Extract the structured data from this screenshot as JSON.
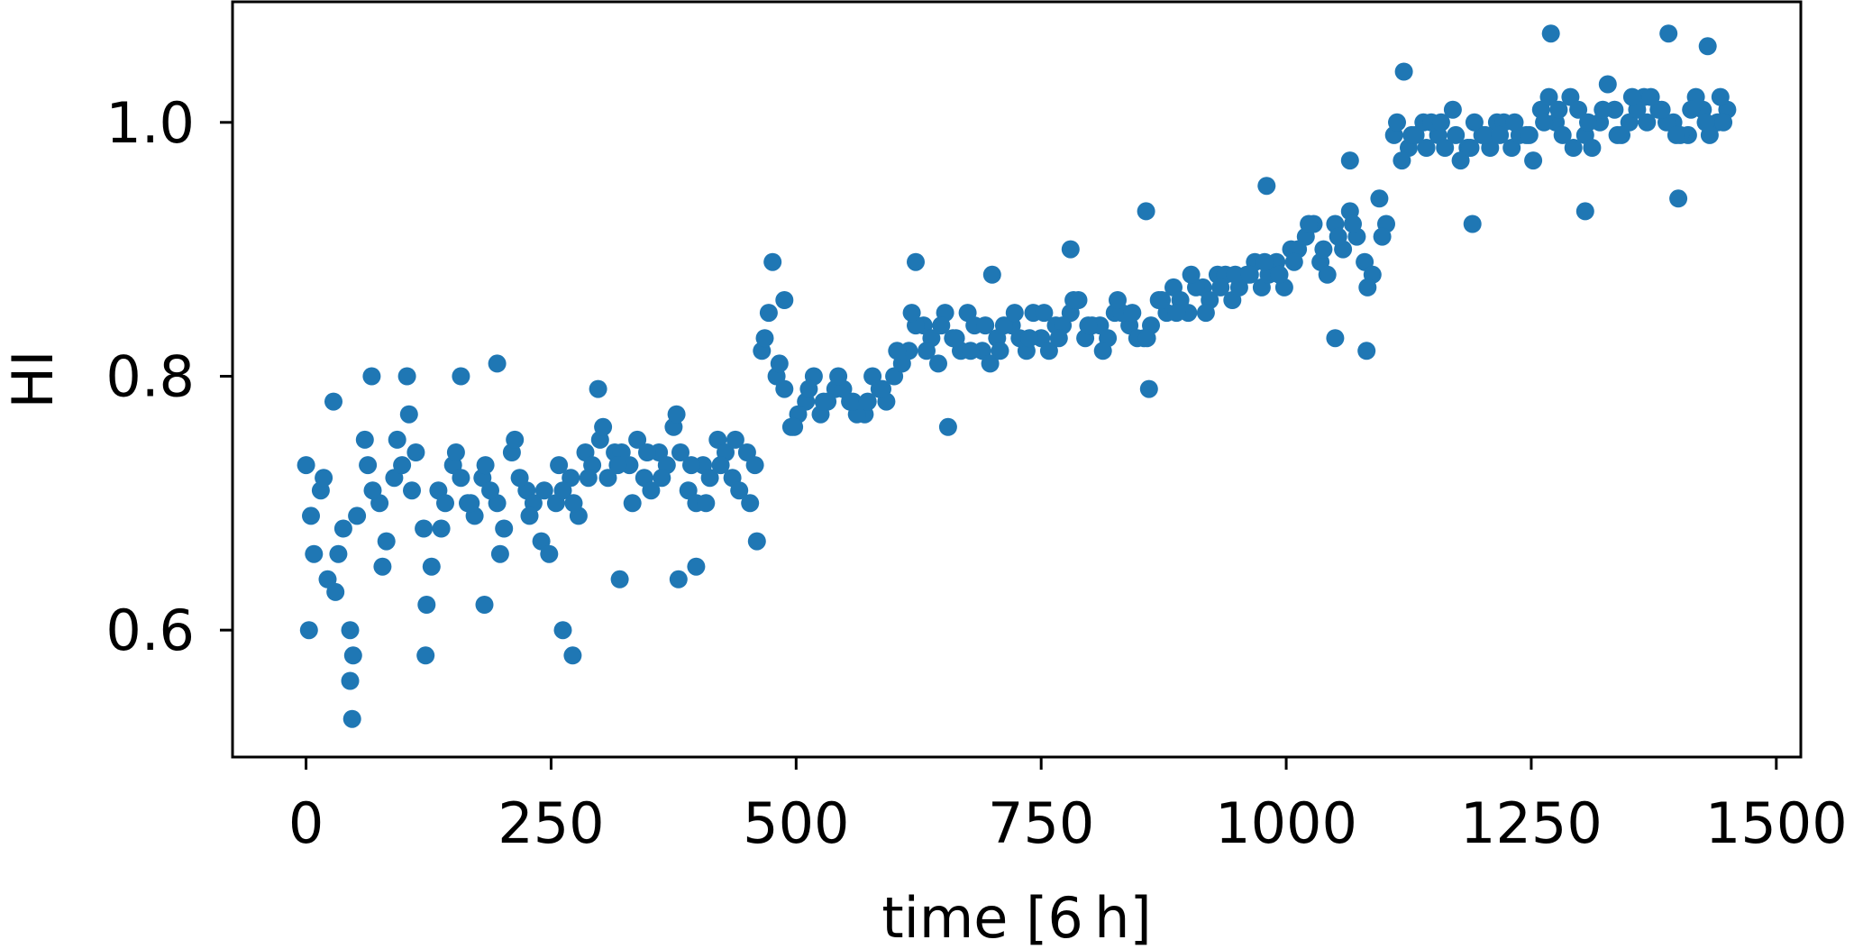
{
  "chart_data": {
    "type": "scatter",
    "title": "",
    "xlabel": "time [6 h]",
    "ylabel": "HI",
    "xlim": [
      -75,
      1525
    ],
    "ylim": [
      0.5,
      1.095
    ],
    "xticks": [
      0,
      250,
      500,
      750,
      1000,
      1250,
      1500
    ],
    "xtick_labels": [
      "0",
      "250",
      "500",
      "750",
      "1000",
      "1250",
      "1500"
    ],
    "yticks": [
      0.6,
      0.8,
      1.0
    ],
    "ytick_labels": [
      "0.6",
      "0.8",
      "1.0"
    ],
    "grid": false,
    "legend": "none",
    "marker_color": "#1f77b4",
    "series": [
      {
        "x": [
          0,
          15,
          30,
          45,
          60,
          75,
          90,
          105,
          120,
          135,
          150,
          165,
          180,
          195,
          210,
          225,
          240,
          255,
          270,
          285,
          300,
          315,
          330,
          345,
          360,
          375,
          390,
          405,
          420,
          435,
          450,
          465,
          480,
          495,
          510,
          525,
          540,
          555,
          570,
          585,
          600,
          615,
          630,
          645,
          660,
          675,
          690,
          705,
          720,
          735,
          750,
          765,
          780,
          795,
          810,
          825,
          840,
          855,
          870,
          885,
          900,
          915,
          930,
          945,
          960,
          975,
          990,
          1005,
          1020,
          1035,
          1050,
          1065,
          1080,
          1095,
          1110,
          1125,
          1140,
          1155,
          1170,
          1185,
          1200,
          1215,
          1230,
          1245,
          1260,
          1275,
          1290,
          1305,
          1320,
          1335,
          1350,
          1365,
          1380,
          1395,
          1410,
          1425,
          1440,
          1450,
          8,
          22,
          38,
          52,
          68,
          82,
          98,
          112,
          128,
          142,
          158,
          172,
          188,
          202,
          218,
          232,
          248,
          262,
          278,
          292,
          308,
          322,
          338,
          352,
          368,
          382,
          398,
          412,
          428,
          442,
          458,
          472,
          488,
          502,
          518,
          532,
          548,
          562,
          578,
          592,
          608,
          622,
          638,
          652,
          668,
          682,
          698,
          712,
          728,
          742,
          758,
          772,
          788,
          802,
          818,
          832,
          848,
          862,
          878,
          892,
          908,
          922,
          938,
          952,
          968,
          982,
          998,
          1012,
          1028,
          1042,
          1058,
          1072,
          1088,
          1102,
          1118,
          1132,
          1148,
          1162,
          1178,
          1192,
          1208,
          1222,
          1238,
          1252,
          1268,
          1282,
          1298,
          1312,
          1328,
          1342,
          1358,
          1372,
          1388,
          1402,
          1418,
          1432,
          1446,
          5,
          18,
          33,
          48,
          63,
          78,
          93,
          108,
          123,
          138,
          153,
          168,
          183,
          198,
          213,
          228,
          243,
          258,
          273,
          288,
          303,
          318,
          333,
          348,
          363,
          378,
          393,
          408,
          423,
          438,
          453,
          468,
          483,
          498,
          513,
          528,
          543,
          558,
          573,
          588,
          603,
          618,
          633,
          648,
          663,
          678,
          693,
          708,
          723,
          738,
          753,
          768,
          783,
          798,
          813,
          828,
          843,
          858,
          873,
          888,
          903,
          918,
          933,
          948,
          963,
          978,
          993,
          1008,
          1023,
          1038,
          1053,
          1068,
          1083,
          1098,
          1113,
          1128,
          1143,
          1158,
          1173,
          1188,
          1203,
          1218,
          1233,
          1248,
          1263,
          1278,
          1293,
          1308,
          1323,
          1338,
          1353,
          1368,
          1383,
          1398,
          1413,
          1428,
          1443,
          47,
          3,
          28,
          67,
          103,
          158,
          195,
          272,
          298,
          380,
          476,
          622,
          700,
          780,
          857,
          980,
          1065,
          1120,
          1190,
          1270,
          1305,
          1390,
          1400,
          1430,
          45,
          122,
          182,
          262,
          320,
          398,
          460,
          488,
          655,
          860,
          1050,
          1082
        ],
        "y": [
          0.73,
          0.71,
          0.63,
          0.6,
          0.75,
          0.7,
          0.72,
          0.77,
          0.68,
          0.71,
          0.73,
          0.7,
          0.72,
          0.7,
          0.74,
          0.71,
          0.67,
          0.7,
          0.72,
          0.74,
          0.75,
          0.74,
          0.73,
          0.72,
          0.74,
          0.76,
          0.71,
          0.73,
          0.75,
          0.72,
          0.74,
          0.82,
          0.8,
          0.76,
          0.78,
          0.77,
          0.79,
          0.78,
          0.77,
          0.79,
          0.8,
          0.82,
          0.84,
          0.81,
          0.83,
          0.85,
          0.82,
          0.83,
          0.84,
          0.82,
          0.83,
          0.84,
          0.85,
          0.83,
          0.84,
          0.85,
          0.84,
          0.83,
          0.86,
          0.87,
          0.85,
          0.87,
          0.88,
          0.86,
          0.88,
          0.87,
          0.89,
          0.9,
          0.91,
          0.89,
          0.92,
          0.93,
          0.89,
          0.94,
          0.99,
          0.98,
          1.0,
          0.99,
          1.01,
          0.98,
          0.99,
          1.0,
          0.98,
          0.99,
          1.01,
          1.0,
          1.02,
          0.99,
          1.0,
          1.01,
          1.0,
          1.02,
          1.01,
          1.0,
          0.99,
          1.01,
          1.0,
          1.01,
          0.66,
          0.64,
          0.68,
          0.69,
          0.71,
          0.67,
          0.73,
          0.74,
          0.65,
          0.7,
          0.72,
          0.69,
          0.71,
          0.68,
          0.72,
          0.7,
          0.66,
          0.71,
          0.69,
          0.73,
          0.72,
          0.74,
          0.75,
          0.71,
          0.73,
          0.74,
          0.7,
          0.72,
          0.74,
          0.71,
          0.73,
          0.85,
          0.79,
          0.77,
          0.8,
          0.78,
          0.79,
          0.77,
          0.8,
          0.78,
          0.81,
          0.84,
          0.83,
          0.85,
          0.82,
          0.84,
          0.81,
          0.84,
          0.83,
          0.85,
          0.82,
          0.84,
          0.86,
          0.84,
          0.83,
          0.85,
          0.83,
          0.84,
          0.85,
          0.86,
          0.87,
          0.86,
          0.88,
          0.87,
          0.89,
          0.88,
          0.87,
          0.9,
          0.92,
          0.88,
          0.9,
          0.91,
          0.88,
          0.92,
          0.97,
          0.99,
          1.0,
          0.98,
          0.97,
          1.0,
          0.98,
          1.0,
          0.99,
          0.97,
          1.02,
          0.99,
          1.01,
          0.98,
          1.03,
          0.99,
          1.01,
          1.02,
          1.0,
          0.99,
          1.02,
          0.99,
          1.0,
          0.69,
          0.72,
          0.66,
          0.58,
          0.73,
          0.65,
          0.75,
          0.71,
          0.62,
          0.68,
          0.74,
          0.7,
          0.73,
          0.66,
          0.75,
          0.69,
          0.71,
          0.73,
          0.7,
          0.72,
          0.76,
          0.73,
          0.7,
          0.74,
          0.72,
          0.77,
          0.73,
          0.7,
          0.73,
          0.75,
          0.7,
          0.83,
          0.81,
          0.76,
          0.79,
          0.78,
          0.8,
          0.78,
          0.78,
          0.79,
          0.82,
          0.85,
          0.82,
          0.84,
          0.83,
          0.82,
          0.84,
          0.82,
          0.85,
          0.83,
          0.85,
          0.83,
          0.86,
          0.84,
          0.82,
          0.86,
          0.85,
          0.83,
          0.86,
          0.85,
          0.88,
          0.85,
          0.87,
          0.88,
          0.88,
          0.89,
          0.88,
          0.89,
          0.92,
          0.9,
          0.91,
          0.92,
          0.87,
          0.91,
          1.0,
          0.99,
          0.98,
          1.0,
          0.99,
          0.98,
          0.99,
          0.99,
          1.0,
          0.99,
          1.0,
          1.01,
          0.98,
          1.0,
          1.01,
          0.99,
          1.02,
          1.0,
          1.01,
          0.99,
          1.01,
          1.0,
          1.02,
          0.53,
          0.6,
          0.78,
          0.8,
          0.8,
          0.8,
          0.81,
          0.58,
          0.79,
          0.64,
          0.89,
          0.89,
          0.88,
          0.9,
          0.93,
          0.95,
          0.97,
          1.04,
          0.92,
          1.07,
          0.93,
          1.07,
          0.94,
          1.06,
          0.56,
          0.58,
          0.62,
          0.6,
          0.64,
          0.65,
          0.67,
          0.86,
          0.76,
          0.79,
          0.83,
          0.82
        ]
      }
    ]
  }
}
